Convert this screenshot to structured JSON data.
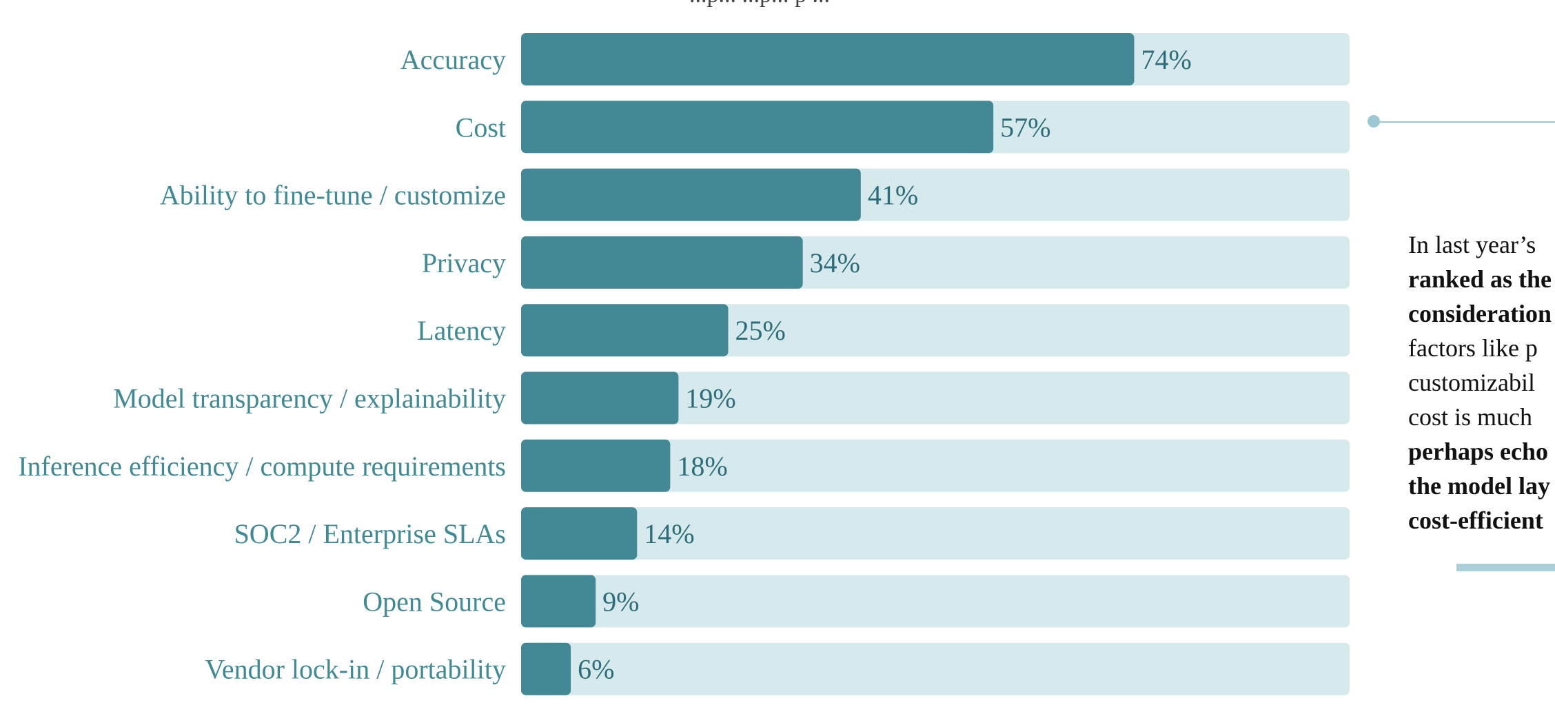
{
  "header": {
    "cutoff_text": "...p... ...p... p ..."
  },
  "chart_data": {
    "type": "bar",
    "categories": [
      "Accuracy",
      "Cost",
      "Ability to fine-tune / customize",
      "Privacy",
      "Latency",
      "Model transparency / explainability",
      "Inference efficiency / compute requirements",
      "SOC2 / Enterprise SLAs",
      "Open Source",
      "Vendor lock-in / portability"
    ],
    "values": [
      74,
      57,
      41,
      34,
      25,
      19,
      18,
      14,
      9,
      6
    ],
    "value_labels": [
      "74%",
      "57%",
      "41%",
      "34%",
      "25%",
      "19%",
      "18%",
      "14%",
      "9%",
      "6%"
    ],
    "title": "",
    "xlabel": "",
    "ylabel": "",
    "ylim": [
      0,
      100
    ],
    "orientation": "horizontal",
    "grid": false,
    "colors": {
      "bar": "#428995",
      "track": "#d6e9ed",
      "label": "#3f8a95",
      "value": "#2d6d79"
    }
  },
  "side_note": {
    "lines": [
      {
        "text": "In last year’s",
        "bold": false
      },
      {
        "text": "ranked as the",
        "bold": true
      },
      {
        "text": "consideration",
        "bold": true
      },
      {
        "text": "factors like p",
        "bold": false
      },
      {
        "text": "customizabil",
        "bold": false
      },
      {
        "text": "cost is much",
        "bold": false
      },
      {
        "text": "perhaps echo",
        "bold": true
      },
      {
        "text": "the model lay",
        "bold": true
      },
      {
        "text": "cost-efficient",
        "bold": true
      }
    ]
  }
}
